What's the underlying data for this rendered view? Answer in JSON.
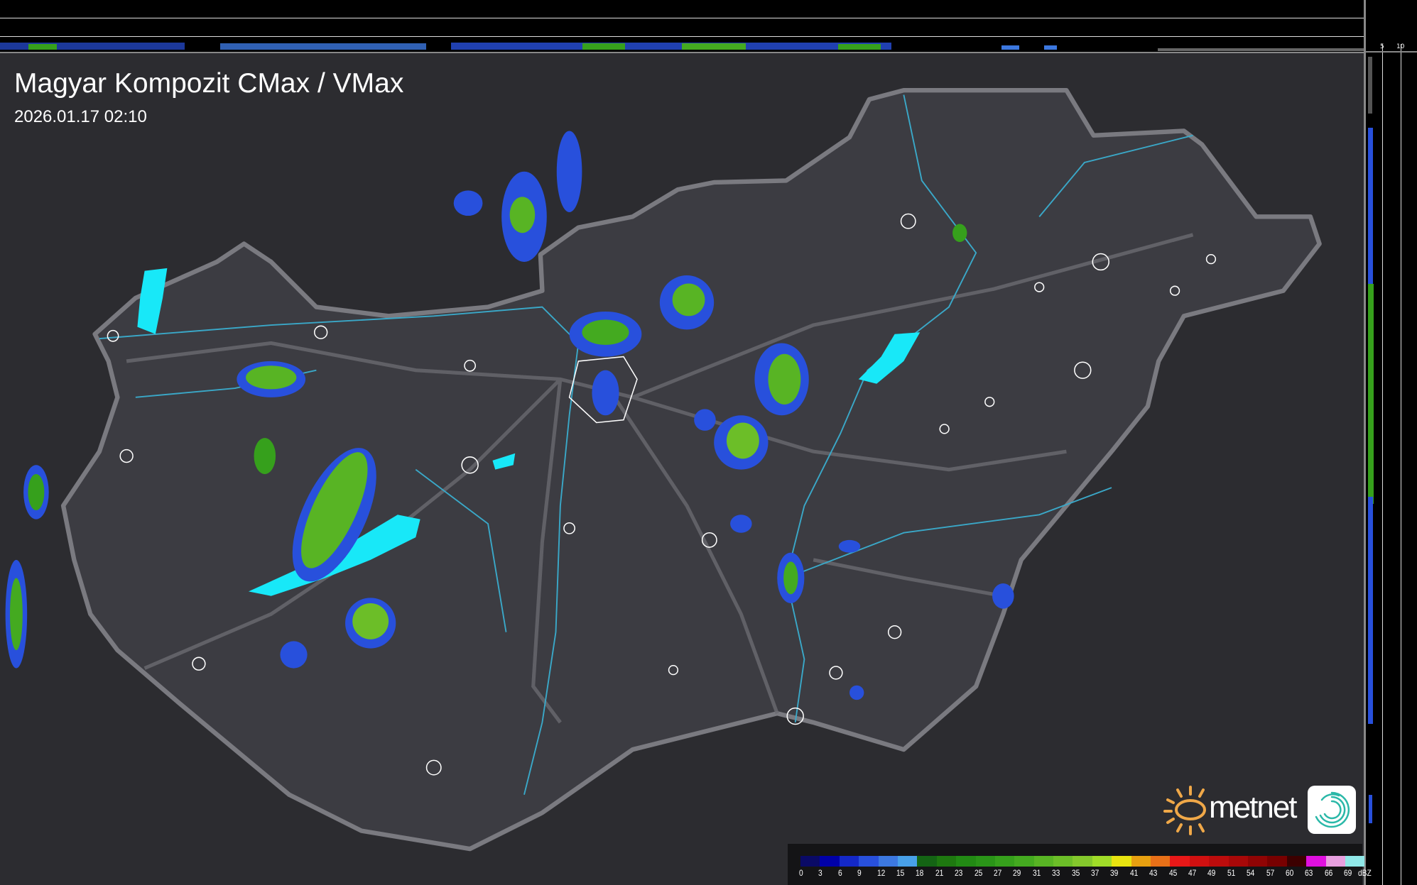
{
  "header": {
    "title": "Magyar Kompozit CMax / VMax",
    "timestamp": "2026.01.17 02:10"
  },
  "profile_scales": {
    "top_labels": [
      "10",
      "5"
    ],
    "right_labels": [
      "5",
      "10"
    ]
  },
  "logo": {
    "brand": "metnet",
    "icons": [
      "sun-logo-icon",
      "spiral-app-icon"
    ]
  },
  "legend": {
    "unit": "dBZ",
    "labels": [
      "0",
      "3",
      "6",
      "9",
      "12",
      "15",
      "18",
      "21",
      "23",
      "25",
      "27",
      "29",
      "31",
      "33",
      "35",
      "37",
      "39",
      "41",
      "43",
      "45",
      "47",
      "49",
      "51",
      "54",
      "57",
      "60",
      "63",
      "66",
      "69"
    ],
    "colors": [
      "#0a0a66",
      "#0000a8",
      "#1428c8",
      "#2850dc",
      "#3c78e0",
      "#48a0e8",
      "#146414",
      "#1e7810",
      "#228a14",
      "#2a9418",
      "#36a01c",
      "#44aa20",
      "#58b424",
      "#6cbe28",
      "#84c82c",
      "#a0dc28",
      "#e8e410",
      "#e8a010",
      "#e87018",
      "#e81818",
      "#d01010",
      "#bc0c0c",
      "#a80808",
      "#900404",
      "#780000",
      "#3c0000",
      "#e010e0",
      "#e8a0e0",
      "#90e8e8"
    ]
  },
  "colors": {
    "terrain": "#2c2c30",
    "country": "#3c3c42",
    "border": "#7a7a80",
    "river": "#3aa8c8",
    "lake": "#18e8f8",
    "city_outline": "#ffffff"
  }
}
